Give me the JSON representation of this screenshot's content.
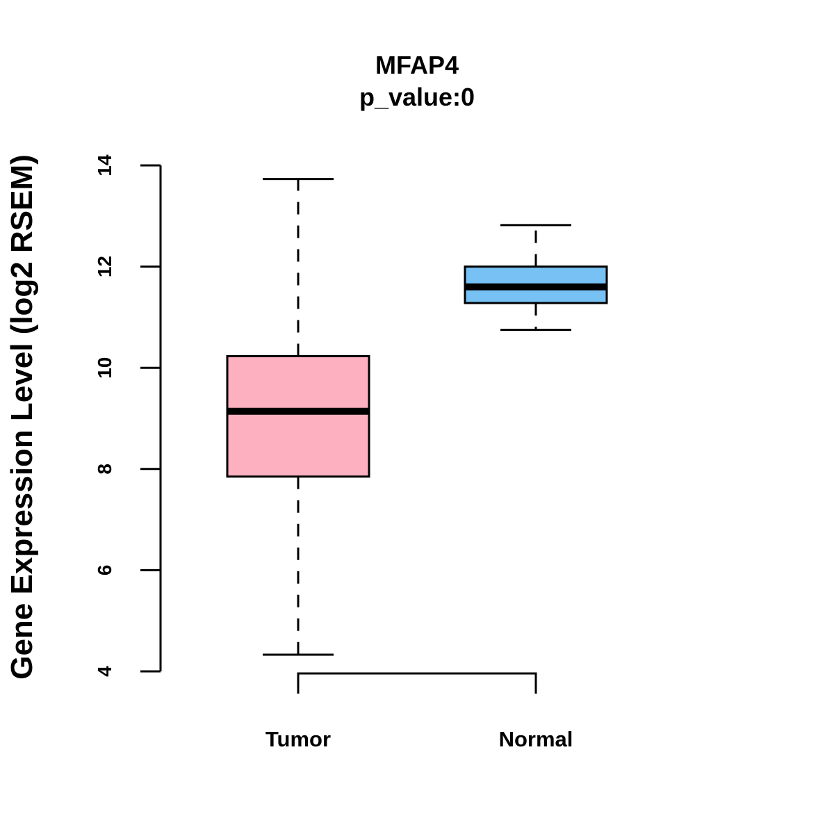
{
  "chart_data": {
    "type": "boxplot",
    "title": "MFAP4",
    "subtitle": "p_value:0",
    "ylabel": "Gene Expression Level (log2 RSEM)",
    "xlabel": "",
    "ylim": [
      4,
      14
    ],
    "yticks": [
      4,
      6,
      8,
      10,
      12,
      14
    ],
    "ytick_labels": [
      "4",
      "6",
      "8",
      "10",
      "12",
      "14"
    ],
    "categories": [
      "Tumor",
      "Normal"
    ],
    "series": [
      {
        "name": "Tumor",
        "whisker_low": 4.33,
        "q1": 7.85,
        "median": 9.14,
        "q3": 10.23,
        "whisker_high": 13.73,
        "color": "#FDB0C0"
      },
      {
        "name": "Normal",
        "whisker_low": 10.75,
        "q1": 11.28,
        "median": 11.6,
        "q3": 12.0,
        "whisker_high": 12.82,
        "color": "#77C1F5"
      }
    ],
    "comparison_bracket": {
      "between": [
        "Tumor",
        "Normal"
      ]
    },
    "grid": false
  }
}
